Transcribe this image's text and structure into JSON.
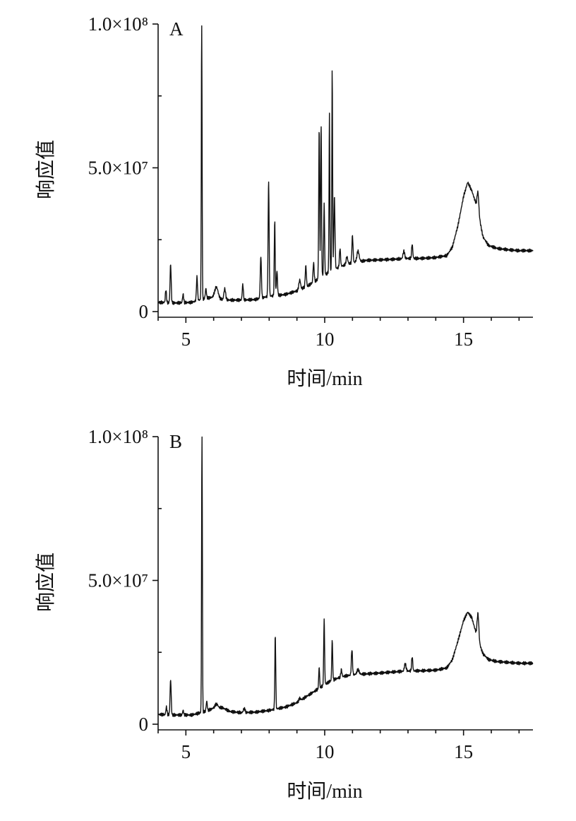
{
  "chart_data": [
    {
      "type": "line",
      "panel_label": "A",
      "xlabel": "时间/min",
      "ylabel": "响应值",
      "xlim": [
        4,
        17.5
      ],
      "ylim": [
        0,
        100000000
      ],
      "x_ticks": [
        {
          "value": 5,
          "label": "5"
        },
        {
          "value": 10,
          "label": "10"
        },
        {
          "value": 15,
          "label": "15"
        }
      ],
      "y_ticks": [
        {
          "value": 0,
          "label": "0"
        },
        {
          "value": 50000000,
          "label": "5.0×10⁷"
        },
        {
          "value": 100000000,
          "label": "1.0×10⁸"
        }
      ],
      "series": [
        {
          "baseline": [
            [
              4.0,
              3.2
            ],
            [
              4.6,
              3.0
            ],
            [
              5.2,
              3.2
            ],
            [
              5.7,
              4.6
            ],
            [
              6.0,
              5.0
            ],
            [
              6.3,
              4.2
            ],
            [
              6.6,
              4.0
            ],
            [
              7.0,
              4.0
            ],
            [
              7.5,
              4.2
            ],
            [
              8.0,
              5.4
            ],
            [
              8.3,
              5.6
            ],
            [
              8.6,
              6.0
            ],
            [
              9.0,
              7.2
            ],
            [
              9.4,
              9.0
            ],
            [
              9.8,
              11.5
            ],
            [
              10.2,
              14.0
            ],
            [
              10.6,
              15.8
            ],
            [
              11.0,
              17.0
            ],
            [
              11.5,
              17.8
            ],
            [
              12.0,
              18.0
            ],
            [
              12.5,
              18.2
            ],
            [
              13.0,
              18.5
            ],
            [
              13.5,
              18.5
            ],
            [
              14.0,
              18.8
            ],
            [
              14.4,
              19.5
            ],
            [
              14.6,
              22.5
            ],
            [
              14.8,
              30.0
            ],
            [
              15.0,
              40.0
            ],
            [
              15.15,
              45.0
            ],
            [
              15.3,
              42.0
            ],
            [
              15.5,
              36.0
            ],
            [
              15.7,
              26.0
            ],
            [
              15.9,
              23.0
            ],
            [
              16.2,
              22.0
            ],
            [
              16.6,
              21.5
            ],
            [
              17.0,
              21.2
            ],
            [
              17.5,
              21.2
            ]
          ],
          "peaks": [
            [
              4.28,
              7.5,
              0.02
            ],
            [
              4.45,
              16.5,
              0.02
            ],
            [
              4.9,
              6.0,
              0.02
            ],
            [
              5.4,
              12.0,
              0.02
            ],
            [
              5.57,
              100.0,
              0.014
            ],
            [
              5.72,
              8.0,
              0.02
            ],
            [
              6.1,
              8.5,
              0.06
            ],
            [
              6.4,
              8.0,
              0.03
            ],
            [
              7.05,
              9.5,
              0.02
            ],
            [
              7.7,
              19.5,
              0.02
            ],
            [
              7.98,
              46.0,
              0.018
            ],
            [
              8.2,
              32.0,
              0.016
            ],
            [
              8.28,
              14.0,
              0.02
            ],
            [
              9.1,
              11.0,
              0.03
            ],
            [
              9.32,
              16.0,
              0.02
            ],
            [
              9.6,
              17.0,
              0.02
            ],
            [
              9.8,
              64.5,
              0.016
            ],
            [
              9.87,
              65.5,
              0.016
            ],
            [
              9.98,
              38.0,
              0.016
            ],
            [
              10.17,
              69.0,
              0.014
            ],
            [
              10.27,
              85.0,
              0.014
            ],
            [
              10.35,
              40.0,
              0.02
            ],
            [
              10.55,
              22.0,
              0.02
            ],
            [
              10.8,
              19.0,
              0.03
            ],
            [
              11.0,
              26.5,
              0.02
            ],
            [
              11.2,
              21.0,
              0.04
            ],
            [
              12.85,
              21.0,
              0.03
            ],
            [
              13.15,
              23.5,
              0.02
            ],
            [
              15.52,
              41.5,
              0.03
            ]
          ]
        }
      ]
    },
    {
      "type": "line",
      "panel_label": "B",
      "xlabel": "时间/min",
      "ylabel": "响应值",
      "xlim": [
        4,
        17.5
      ],
      "ylim": [
        0,
        100000000
      ],
      "x_ticks": [
        {
          "value": 5,
          "label": "5"
        },
        {
          "value": 10,
          "label": "10"
        },
        {
          "value": 15,
          "label": "15"
        }
      ],
      "y_ticks": [
        {
          "value": 0,
          "label": "0"
        },
        {
          "value": 50000000,
          "label": "5.0×10⁷"
        },
        {
          "value": 100000000,
          "label": "1.0×10⁸"
        }
      ],
      "series": [
        {
          "baseline": [
            [
              4.0,
              3.4
            ],
            [
              4.6,
              3.2
            ],
            [
              5.2,
              3.2
            ],
            [
              5.7,
              4.4
            ],
            [
              6.0,
              5.6
            ],
            [
              6.3,
              5.8
            ],
            [
              6.6,
              4.4
            ],
            [
              7.0,
              4.0
            ],
            [
              7.5,
              4.2
            ],
            [
              8.0,
              4.8
            ],
            [
              8.3,
              5.4
            ],
            [
              8.6,
              6.0
            ],
            [
              9.0,
              7.5
            ],
            [
              9.4,
              10.0
            ],
            [
              9.8,
              12.5
            ],
            [
              10.2,
              15.0
            ],
            [
              10.6,
              16.5
            ],
            [
              11.0,
              17.2
            ],
            [
              11.5,
              17.5
            ],
            [
              12.0,
              17.8
            ],
            [
              12.5,
              18.2
            ],
            [
              13.0,
              18.5
            ],
            [
              13.5,
              18.6
            ],
            [
              14.0,
              18.8
            ],
            [
              14.4,
              19.6
            ],
            [
              14.6,
              22.5
            ],
            [
              14.8,
              29.0
            ],
            [
              15.0,
              36.0
            ],
            [
              15.15,
              39.0
            ],
            [
              15.3,
              37.0
            ],
            [
              15.5,
              30.0
            ],
            [
              15.7,
              24.5
            ],
            [
              15.9,
              22.5
            ],
            [
              16.2,
              21.8
            ],
            [
              16.6,
              21.5
            ],
            [
              17.0,
              21.2
            ],
            [
              17.5,
              21.2
            ]
          ],
          "peaks": [
            [
              4.3,
              6.0,
              0.02
            ],
            [
              4.45,
              15.5,
              0.02
            ],
            [
              4.9,
              4.8,
              0.02
            ],
            [
              5.58,
              100.0,
              0.014
            ],
            [
              5.75,
              8.0,
              0.02
            ],
            [
              6.1,
              7.0,
              0.05
            ],
            [
              7.1,
              5.5,
              0.03
            ],
            [
              8.22,
              31.0,
              0.016
            ],
            [
              9.1,
              9.0,
              0.03
            ],
            [
              9.8,
              20.0,
              0.016
            ],
            [
              9.98,
              37.0,
              0.016
            ],
            [
              10.27,
              29.5,
              0.016
            ],
            [
              10.6,
              19.0,
              0.02
            ],
            [
              10.98,
              26.0,
              0.02
            ],
            [
              11.2,
              19.0,
              0.04
            ],
            [
              12.9,
              21.0,
              0.03
            ],
            [
              13.15,
              23.5,
              0.02
            ],
            [
              15.52,
              38.5,
              0.03
            ]
          ]
        }
      ]
    }
  ]
}
